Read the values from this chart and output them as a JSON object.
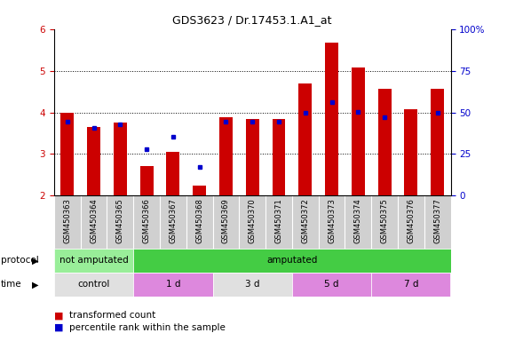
{
  "title": "GDS3623 / Dr.17453.1.A1_at",
  "samples": [
    "GSM450363",
    "GSM450364",
    "GSM450365",
    "GSM450366",
    "GSM450367",
    "GSM450368",
    "GSM450369",
    "GSM450370",
    "GSM450371",
    "GSM450372",
    "GSM450373",
    "GSM450374",
    "GSM450375",
    "GSM450376",
    "GSM450377"
  ],
  "red_values": [
    4.0,
    3.65,
    3.75,
    2.72,
    3.05,
    2.25,
    3.88,
    3.85,
    3.85,
    4.7,
    5.68,
    5.08,
    4.57,
    4.08,
    4.57
  ],
  "blue_values": [
    3.78,
    3.62,
    3.72,
    3.12,
    3.42,
    2.7,
    3.77,
    3.77,
    3.77,
    4.0,
    4.25,
    4.02,
    3.88,
    null,
    3.98
  ],
  "ylim_left": [
    2,
    6
  ],
  "ylim_right": [
    0,
    100
  ],
  "yticks_left": [
    2,
    3,
    4,
    5,
    6
  ],
  "yticks_right": [
    0,
    25,
    50,
    75,
    100
  ],
  "bar_color": "#CC0000",
  "dot_color": "#0000CC",
  "protocol_groups": [
    {
      "label": "not amputated",
      "start": 0,
      "end": 3,
      "color": "#99EE99"
    },
    {
      "label": "amputated",
      "start": 3,
      "end": 15,
      "color": "#44CC44"
    }
  ],
  "time_groups": [
    {
      "label": "control",
      "start": 0,
      "end": 3,
      "color": "#E0E0E0"
    },
    {
      "label": "1 d",
      "start": 3,
      "end": 6,
      "color": "#DD88DD"
    },
    {
      "label": "3 d",
      "start": 6,
      "end": 9,
      "color": "#E0E0E0"
    },
    {
      "label": "5 d",
      "start": 9,
      "end": 12,
      "color": "#DD88DD"
    },
    {
      "label": "7 d",
      "start": 12,
      "end": 15,
      "color": "#DD88DD"
    }
  ],
  "legend_items": [
    {
      "label": "transformed count",
      "color": "#CC0000"
    },
    {
      "label": "percentile rank within the sample",
      "color": "#0000CC"
    }
  ],
  "bar_width": 0.5,
  "tick_bg_color": "#D0D0D0"
}
